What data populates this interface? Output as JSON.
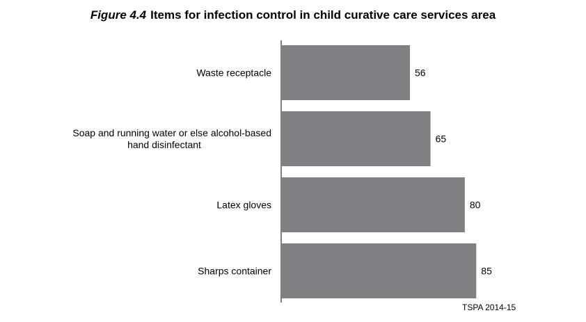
{
  "title": {
    "figure_number": "Figure 4.4",
    "text": "Items for infection control in child curative care services area"
  },
  "source": "TSPA 2014-15",
  "chart_data": {
    "type": "bar",
    "orientation": "horizontal",
    "categories": [
      [
        "Waste receptacle"
      ],
      [
        "Soap and running water or else alcohol-based",
        "hand disinfectant"
      ],
      [
        "Latex gloves"
      ],
      [
        "Sharps container"
      ]
    ],
    "values": [
      56,
      65,
      80,
      85
    ],
    "bar_color": "#808084",
    "xlim": [
      0,
      100
    ],
    "grid": false,
    "data_labels": true
  }
}
